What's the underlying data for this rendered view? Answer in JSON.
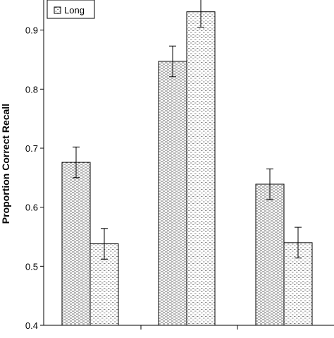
{
  "chart_data": {
    "type": "bar",
    "ylabel": "Proportion Correct Recall",
    "ylim": [
      0.4,
      0.95
    ],
    "yticks": [
      0.4,
      0.5,
      0.6,
      0.7,
      0.8,
      0.9
    ],
    "ytick_labels": [
      "0.4",
      "0.5",
      "0.6",
      "0.7",
      "0.8",
      "0.9"
    ],
    "groups": 3,
    "series": [
      {
        "name": "",
        "pattern": "dense-dash",
        "values": [
          0.676,
          0.847,
          0.639
        ],
        "errors": [
          0.026,
          0.026,
          0.026
        ]
      },
      {
        "name": "Long",
        "pattern": "sparse-dash",
        "values": [
          0.538,
          0.931,
          0.54
        ],
        "errors": [
          0.026,
          0.026,
          0.026
        ]
      }
    ],
    "legend": {
      "placement": "top-left",
      "entries": [
        "Long"
      ]
    },
    "grid": false
  },
  "colors": {
    "axis": "#000000",
    "bar_stroke": "#000000",
    "bar_fill": "#ffffff",
    "pattern_ink": "#333333"
  }
}
